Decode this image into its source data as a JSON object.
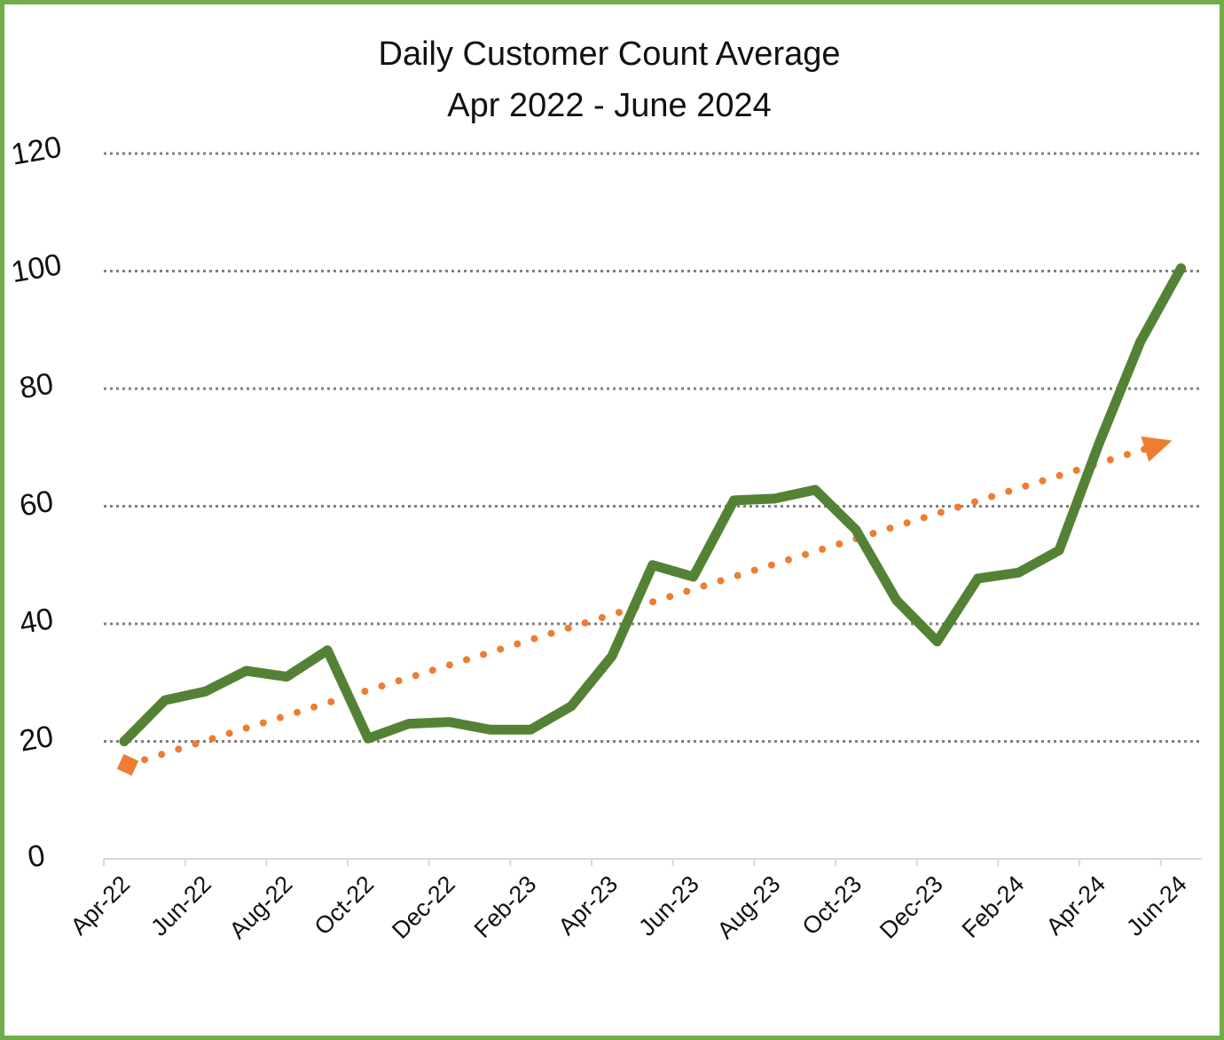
{
  "chart_data": {
    "type": "line",
    "title": "Daily Customer Count Average",
    "subtitle": "Apr 2022 - June 2024",
    "xlabel": "",
    "ylabel": "",
    "ylim": [
      0,
      120
    ],
    "y_ticks": [
      0,
      20,
      40,
      60,
      80,
      100,
      120
    ],
    "x_tick_labels": [
      "Apr-22",
      "Jun-22",
      "Aug-22",
      "Oct-22",
      "Dec-22",
      "Feb-23",
      "Apr-23",
      "Jun-23",
      "Aug-23",
      "Oct-23",
      "Dec-23",
      "Feb-24",
      "Apr-24",
      "Jun-24"
    ],
    "grid": true,
    "legend": "none",
    "categories": [
      "Apr-22",
      "May-22",
      "Jun-22",
      "Jul-22",
      "Aug-22",
      "Sep-22",
      "Oct-22",
      "Nov-22",
      "Dec-22",
      "Jan-23",
      "Feb-23",
      "Mar-23",
      "Apr-23",
      "May-23",
      "Jun-23",
      "Jul-23",
      "Aug-23",
      "Sep-23",
      "Oct-23",
      "Nov-23",
      "Dec-23",
      "Jan-24",
      "Feb-24",
      "Mar-24",
      "Apr-24",
      "May-24",
      "Jun-24"
    ],
    "series": [
      {
        "values": [
          20,
          27,
          28.5,
          32,
          31,
          35.5,
          20.5,
          23,
          23.3,
          22,
          22,
          26,
          34.5,
          50,
          48,
          61,
          61.3,
          62.8,
          56,
          44,
          37,
          47.7,
          48.7,
          52.5,
          71,
          88,
          100.5
        ],
        "color": "#548235"
      }
    ],
    "trendline": {
      "style": "dotted",
      "color": "#ed7d31",
      "start": 16,
      "end": 70,
      "start_marker": "diamond",
      "end_marker": "arrow"
    }
  }
}
